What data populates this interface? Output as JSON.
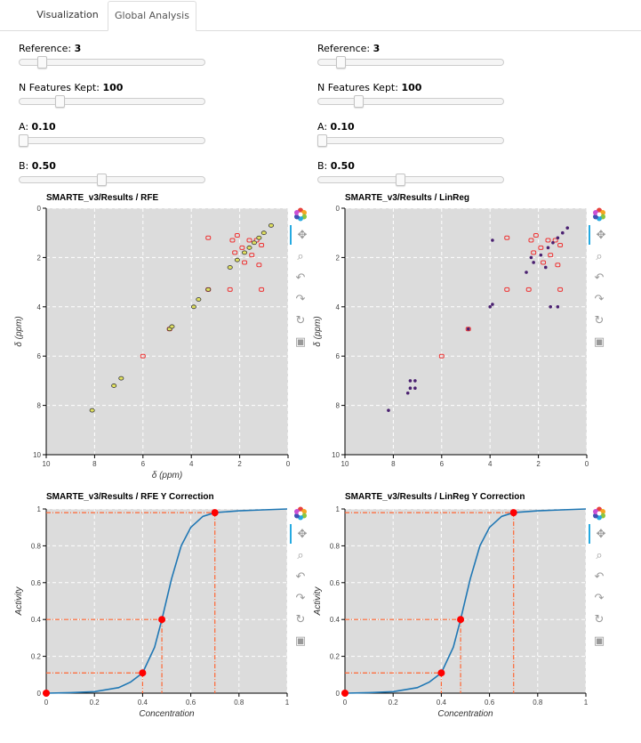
{
  "tabs": [
    {
      "label": "Visualization"
    },
    {
      "label": "Global Analysis"
    }
  ],
  "left": {
    "reference": {
      "label": "Reference:",
      "value": "3",
      "level": 0.1
    },
    "n_features": {
      "label": "N Features Kept:",
      "value": "100",
      "level": 0.2
    },
    "a": {
      "label": "A:",
      "value": "0.10",
      "level": 0.0
    },
    "b": {
      "label": "B:",
      "value": "0.50",
      "level": 0.44
    },
    "nmr_title": "SMARTE_v3/Results / RFE",
    "corr_title": "SMARTE_v3/Results / RFE Y Correction"
  },
  "right": {
    "reference": {
      "label": "Reference:",
      "value": "3",
      "level": 0.1
    },
    "n_features": {
      "label": "N Features Kept:",
      "value": "100",
      "level": 0.2
    },
    "a": {
      "label": "A:",
      "value": "0.10",
      "level": 0.0
    },
    "b": {
      "label": "B:",
      "value": "0.50",
      "level": 0.44
    },
    "nmr_title": "SMARTE_v3/Results / LinReg",
    "corr_title": "SMARTE_v3/Results / LinReg Y Correction"
  },
  "toolbar_icons": [
    "bokeh-logo-icon",
    "pan-icon",
    "box-zoom-icon",
    "undo-icon",
    "redo-icon",
    "reset-icon",
    "save-icon"
  ],
  "colors": {
    "plot_bg": "#dcdcdc",
    "contour_red": "#ee3333",
    "curve_blue": "#1f77b4",
    "marker_red": "#ff0000",
    "guide_orange": "#ff6633",
    "feature_yellow": "#e0e060",
    "feature_purple": "#4a2070"
  },
  "chart_data": [
    {
      "type": "scatter",
      "title": "SMARTE_v3/Results / RFE",
      "xlabel": "δ (ppm)",
      "ylabel": "δ (ppm)",
      "xlim": [
        10,
        0
      ],
      "ylim": [
        10,
        0
      ],
      "x_ticks": [
        "10",
        "8",
        "6",
        "4",
        "2",
        "0"
      ],
      "y_ticks": [
        "0",
        "2",
        "4",
        "6",
        "8",
        "10"
      ],
      "grid": true,
      "features": {
        "x": [
          8.1,
          7.2,
          6.9,
          4.9,
          4.8,
          3.9,
          3.7,
          3.3,
          2.4,
          2.1,
          1.8,
          1.6,
          1.4,
          1.2,
          1.0,
          0.7
        ],
        "y": [
          8.2,
          7.2,
          6.9,
          4.9,
          4.8,
          4.0,
          3.7,
          3.3,
          2.4,
          2.1,
          1.8,
          1.6,
          1.4,
          1.2,
          1.0,
          0.7
        ]
      },
      "contours": {
        "x": [
          6.0,
          4.9,
          3.3,
          3.3,
          2.3,
          2.1,
          1.9,
          1.6,
          1.3,
          1.1,
          1.8,
          1.2,
          2.4,
          1.1,
          2.2,
          1.5
        ],
        "y": [
          6.0,
          4.9,
          3.3,
          1.2,
          1.3,
          1.1,
          1.6,
          1.3,
          1.3,
          1.5,
          2.2,
          2.3,
          3.3,
          3.3,
          1.8,
          1.9
        ]
      }
    },
    {
      "type": "scatter",
      "title": "SMARTE_v3/Results / LinReg",
      "xlabel": "",
      "ylabel": "δ (ppm)",
      "xlim": [
        10,
        0
      ],
      "ylim": [
        10,
        0
      ],
      "x_ticks": [
        "10",
        "8",
        "6",
        "4",
        "2",
        "0"
      ],
      "y_ticks": [
        "0",
        "2",
        "4",
        "6",
        "8",
        "10"
      ],
      "grid": true,
      "features": {
        "x": [
          8.2,
          7.3,
          7.1,
          7.3,
          7.1,
          7.4,
          4.9,
          4.0,
          3.9,
          2.5,
          2.2,
          1.9,
          1.6,
          1.4,
          1.2,
          1.0,
          0.8,
          3.9,
          1.5,
          1.2,
          2.3,
          1.7
        ],
        "y": [
          8.2,
          7.0,
          7.0,
          7.3,
          7.3,
          7.5,
          4.9,
          4.0,
          3.9,
          2.6,
          2.2,
          1.9,
          1.6,
          1.4,
          1.2,
          1.0,
          0.8,
          1.3,
          4.0,
          4.0,
          2.0,
          2.4
        ]
      },
      "contours": {
        "x": [
          6.0,
          4.9,
          3.3,
          3.3,
          2.3,
          2.1,
          1.9,
          1.6,
          1.3,
          1.1,
          1.8,
          1.2,
          2.4,
          1.1,
          2.2,
          1.5
        ],
        "y": [
          6.0,
          4.9,
          3.3,
          1.2,
          1.3,
          1.1,
          1.6,
          1.3,
          1.3,
          1.5,
          2.2,
          2.3,
          3.3,
          3.3,
          1.8,
          1.9
        ]
      }
    },
    {
      "type": "line",
      "title": "SMARTE_v3/Results / RFE Y Correction",
      "xlabel": "Concentration",
      "ylabel": "Activity",
      "xlim": [
        0,
        1
      ],
      "ylim": [
        0,
        1
      ],
      "x_ticks": [
        "0",
        "0.2",
        "0.4",
        "0.6",
        "0.8",
        "1"
      ],
      "y_ticks": [
        "0",
        "0.2",
        "0.4",
        "0.6",
        "0.8",
        "1"
      ],
      "grid": true,
      "points": {
        "x": [
          0,
          0.4,
          0.48,
          0.7
        ],
        "y": [
          0,
          0.11,
          0.4,
          0.98
        ]
      },
      "curve": {
        "x": [
          0,
          0.1,
          0.2,
          0.3,
          0.35,
          0.4,
          0.45,
          0.48,
          0.52,
          0.56,
          0.6,
          0.65,
          0.7,
          0.8,
          0.9,
          1.0
        ],
        "y": [
          0,
          0.003,
          0.008,
          0.03,
          0.06,
          0.11,
          0.25,
          0.4,
          0.62,
          0.8,
          0.9,
          0.96,
          0.98,
          0.99,
          0.995,
          1.0
        ]
      }
    },
    {
      "type": "line",
      "title": "SMARTE_v3/Results / LinReg Y Correction",
      "xlabel": "Concentration",
      "ylabel": "Activity",
      "xlim": [
        0,
        1
      ],
      "ylim": [
        0,
        1
      ],
      "x_ticks": [
        "0",
        "0.2",
        "0.4",
        "0.6",
        "0.8",
        "1"
      ],
      "y_ticks": [
        "0",
        "0.2",
        "0.4",
        "0.6",
        "0.8",
        "1"
      ],
      "grid": true,
      "points": {
        "x": [
          0,
          0.4,
          0.48,
          0.7
        ],
        "y": [
          0,
          0.11,
          0.4,
          0.98
        ]
      },
      "curve": {
        "x": [
          0,
          0.1,
          0.2,
          0.3,
          0.35,
          0.4,
          0.45,
          0.48,
          0.52,
          0.56,
          0.6,
          0.65,
          0.7,
          0.8,
          0.9,
          1.0
        ],
        "y": [
          0,
          0.003,
          0.008,
          0.03,
          0.06,
          0.11,
          0.25,
          0.4,
          0.62,
          0.8,
          0.9,
          0.96,
          0.98,
          0.99,
          0.995,
          1.0
        ]
      }
    }
  ]
}
